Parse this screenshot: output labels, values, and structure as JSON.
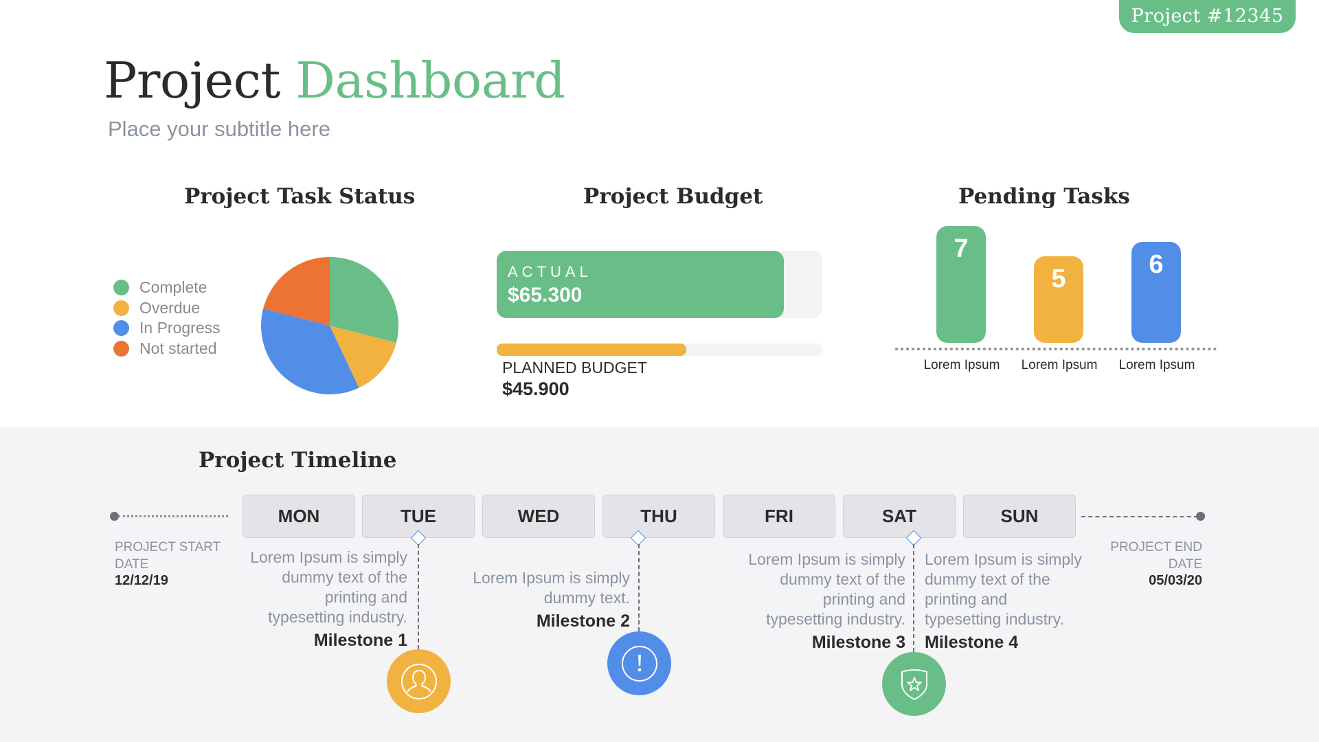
{
  "badge": {
    "label": "Project  #12345"
  },
  "header": {
    "title_part1": "Project",
    "title_part2": "Dashboard",
    "subtitle": "Place your subtitle here"
  },
  "colors": {
    "green": "#69BE88",
    "yellow": "#F2B240",
    "blue": "#528EE8",
    "orange": "#EC7332",
    "timeline_bg": "#f4f4f6"
  },
  "task_status": {
    "title": "Project Task Status",
    "legend": [
      {
        "label": "Complete",
        "color": "#69BE88"
      },
      {
        "label": "Overdue",
        "color": "#F2B240"
      },
      {
        "label": "In Progress",
        "color": "#528EE8"
      },
      {
        "label": "Not started",
        "color": "#EC7332"
      }
    ]
  },
  "budget": {
    "title": "Project Budget",
    "actual_label": "ACTUAL",
    "actual_value": "$65.300",
    "planned_label": "PLANNED BUDGET",
    "planned_value": "$45.900"
  },
  "pending": {
    "title": "Pending Tasks",
    "bars": [
      {
        "value": "7",
        "label": "Lorem Ipsum",
        "color": "#69BE88"
      },
      {
        "value": "5",
        "label": "Lorem Ipsum",
        "color": "#F2B240"
      },
      {
        "value": "6",
        "label": "Lorem Ipsum",
        "color": "#528EE8"
      }
    ]
  },
  "timeline": {
    "title": "Project Timeline",
    "days": [
      "MON",
      "TUE",
      "WED",
      "THU",
      "FRI",
      "SAT",
      "SUN"
    ],
    "start_label_1": "PROJECT START",
    "start_label_2": "DATE",
    "start_date": "12/12/19",
    "end_label_1": "PROJECT END",
    "end_label_2": "DATE",
    "end_date": "05/03/20",
    "milestones": [
      {
        "title": "Milestone 1",
        "lines": [
          "Lorem Ipsum is simply",
          "dummy text of the",
          "printing and",
          "typesetting industry."
        ],
        "icon": "user-icon",
        "color": "#F2B240"
      },
      {
        "title": "Milestone 2",
        "lines": [
          "Lorem Ipsum is simply",
          "dummy text."
        ],
        "icon": "alert-icon",
        "color": "#528EE8"
      },
      {
        "title": "Milestone 3",
        "lines": [
          "Lorem Ipsum is simply",
          "dummy text of the",
          "printing and",
          "typesetting industry."
        ],
        "icon": "shield-star-icon",
        "color": "#69BE88"
      },
      {
        "title": "Milestone 4",
        "lines": [
          "Lorem Ipsum is simply",
          "dummy text of the",
          "printing and",
          "typesetting industry."
        ]
      }
    ]
  },
  "chart_data": [
    {
      "type": "pie",
      "title": "Project Task Status",
      "categories": [
        "Complete",
        "Overdue",
        "In Progress",
        "Not started"
      ],
      "values": [
        29,
        14,
        36,
        21
      ],
      "colors": [
        "#69BE88",
        "#F2B240",
        "#528EE8",
        "#EC7332"
      ],
      "legend_position": "left"
    },
    {
      "type": "bar",
      "title": "Pending Tasks",
      "categories": [
        "Lorem Ipsum",
        "Lorem Ipsum",
        "Lorem Ipsum"
      ],
      "values": [
        7,
        5,
        6
      ],
      "colors": [
        "#69BE88",
        "#F2B240",
        "#528EE8"
      ],
      "grid": false
    },
    {
      "type": "bar",
      "title": "Project Budget",
      "categories": [
        "ACTUAL",
        "PLANNED BUDGET"
      ],
      "values": [
        65300,
        45900
      ],
      "orientation": "horizontal"
    }
  ]
}
